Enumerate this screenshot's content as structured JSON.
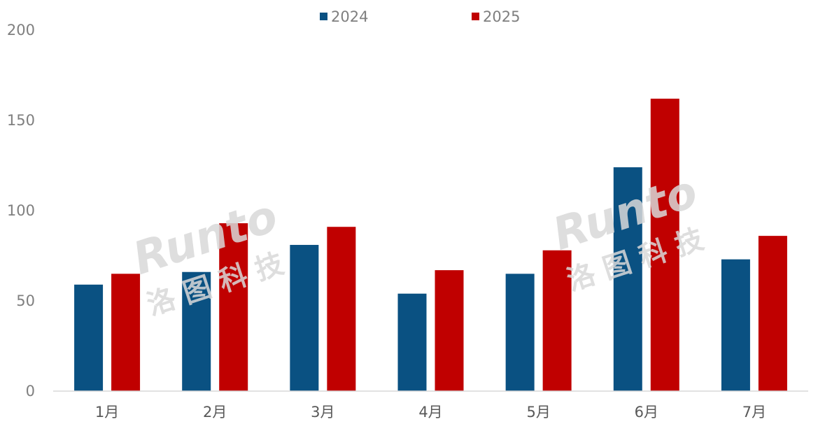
{
  "chart_data": {
    "type": "bar",
    "categories": [
      "1月",
      "2月",
      "3月",
      "4月",
      "5月",
      "6月",
      "7月"
    ],
    "series": [
      {
        "name": "2024",
        "color": "#0a5182",
        "values": [
          59,
          66,
          81,
          54,
          65,
          124,
          73
        ]
      },
      {
        "name": "2025",
        "color": "#c00000",
        "values": [
          65,
          93,
          91,
          67,
          78,
          162,
          86
        ]
      }
    ],
    "ylim": [
      0,
      200
    ],
    "yticks": [
      "0",
      "50",
      "100",
      "150",
      "200"
    ],
    "grid": false,
    "legend": "top-center"
  },
  "watermark": {
    "brand": "Runto",
    "cn": "洛图科技"
  }
}
